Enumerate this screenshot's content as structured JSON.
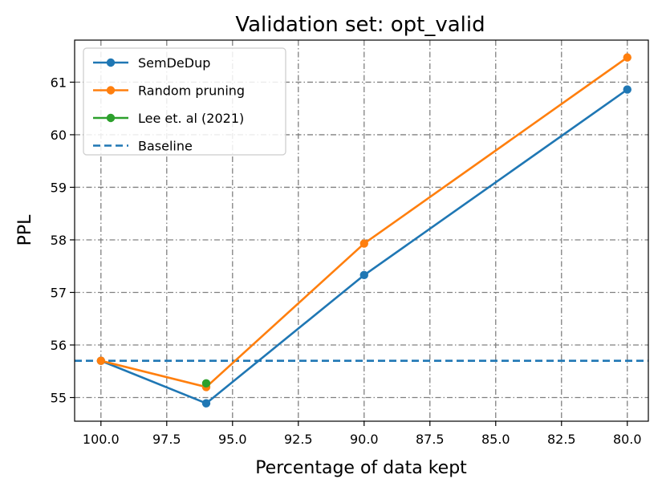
{
  "chart_data": {
    "type": "line",
    "title": "Validation set: opt_valid",
    "xlabel": "Percentage of data kept",
    "ylabel": "PPL",
    "xlim": [
      101,
      79.2
    ],
    "ylim": [
      54.55,
      61.8
    ],
    "x_inverted": true,
    "grid": true,
    "legend_position": "top-left",
    "x_ticks": [
      100.0,
      97.5,
      95.0,
      92.5,
      90.0,
      87.5,
      85.0,
      82.5,
      80.0
    ],
    "x_tick_labels": [
      "100.0",
      "97.5",
      "95.0",
      "92.5",
      "90.0",
      "87.5",
      "85.0",
      "82.5",
      "80.0"
    ],
    "y_ticks": [
      55,
      56,
      57,
      58,
      59,
      60,
      61
    ],
    "y_tick_labels": [
      "55",
      "56",
      "57",
      "58",
      "59",
      "60",
      "61"
    ],
    "series": [
      {
        "name": "SemDeDup",
        "color": "#1f77b4",
        "style": "solid-marker",
        "x": [
          100,
          96,
          90,
          80
        ],
        "values": [
          55.7,
          54.89,
          57.33,
          60.86
        ]
      },
      {
        "name": "Random pruning",
        "color": "#ff7f0e",
        "style": "solid-marker",
        "x": [
          100,
          96,
          90,
          80
        ],
        "values": [
          55.7,
          55.2,
          57.93,
          61.47
        ]
      },
      {
        "name": "Lee et. al (2021)",
        "color": "#2ca02c",
        "style": "solid-marker",
        "x": [
          96
        ],
        "values": [
          55.27
        ]
      },
      {
        "name": "Baseline",
        "color": "#1f77b4",
        "style": "dashed",
        "y": 55.7
      }
    ]
  }
}
